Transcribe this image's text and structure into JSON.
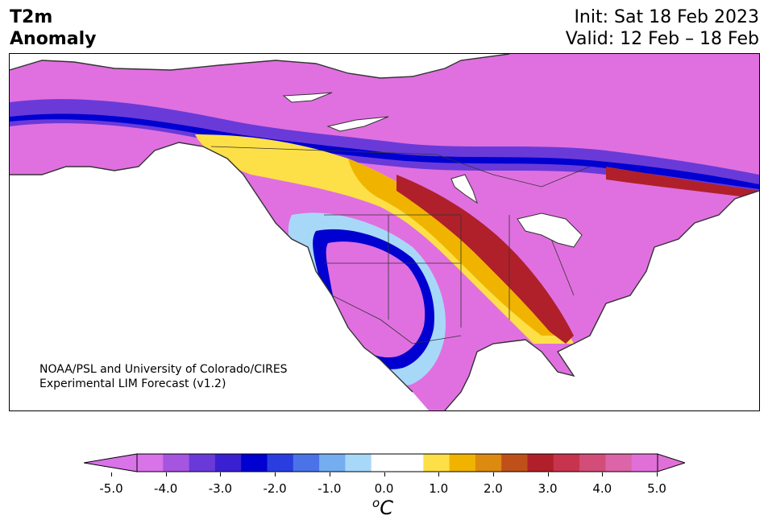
{
  "header": {
    "title_line1": "T2m",
    "title_line2": "Anomaly",
    "init": "Init: Sat 18 Feb 2023",
    "valid": "Valid: 12 Feb – 18 Feb"
  },
  "map": {
    "credit_line1": "NOAA/PSL and University of Colorado/CIRES",
    "credit_line2": "Experimental LIM Forecast (v1.2)",
    "colors": {
      "land_outline": "#333333",
      "warm_magenta": "#e070e0",
      "dark_red": "#b0202a",
      "orange": "#f0b400",
      "yellow": "#fde047",
      "cold_blue": "#0000d0",
      "cold_purple": "#6a3ad8",
      "light_blue": "#a8d8f8"
    }
  },
  "colorbar": {
    "unit_base": "C",
    "unit_sup": "o",
    "colors": [
      "#d873e8",
      "#a655e0",
      "#6a3ad8",
      "#3a20d0",
      "#0000d0",
      "#2a3ee0",
      "#4a73e8",
      "#74aef0",
      "#a8d8f8",
      "#ffffff",
      "#ffffff",
      "#fde047",
      "#f0b400",
      "#dc8a10",
      "#c0501a",
      "#b0202a",
      "#c8344e",
      "#d24e78",
      "#dc64a8",
      "#e070d8"
    ],
    "tick_labels": [
      "-5.0",
      "-4.0",
      "-3.0",
      "-2.0",
      "-1.0",
      "0.0",
      "1.0",
      "2.0",
      "3.0",
      "4.0",
      "5.0"
    ]
  }
}
